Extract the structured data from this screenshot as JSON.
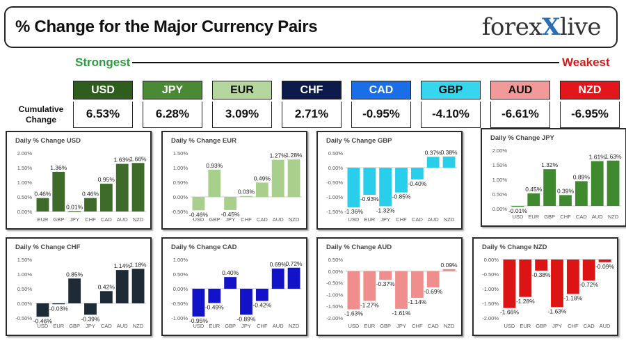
{
  "header": {
    "title": "% Change for the Major Currency Pairs",
    "logo_left": "forex",
    "logo_mark": "X",
    "logo_right": "live"
  },
  "ranking": {
    "strongest_label": "Strongest",
    "weakest_label": "Weakest",
    "cumulative_label": "Cumulative Change",
    "currencies": [
      {
        "code": "USD",
        "value": "6.53%",
        "bg": "#2f5d1e",
        "fg": "#ffffff"
      },
      {
        "code": "JPY",
        "value": "6.28%",
        "bg": "#4b8a34",
        "fg": "#ffffff"
      },
      {
        "code": "EUR",
        "value": "3.09%",
        "bg": "#b5d69c",
        "fg": "#111111"
      },
      {
        "code": "CHF",
        "value": "2.71%",
        "bg": "#0d1b4c",
        "fg": "#ffffff"
      },
      {
        "code": "CAD",
        "value": "-0.95%",
        "bg": "#1a6fe8",
        "fg": "#ffffff"
      },
      {
        "code": "GBP",
        "value": "-4.10%",
        "bg": "#35d6ee",
        "fg": "#111111"
      },
      {
        "code": "AUD",
        "value": "-6.61%",
        "bg": "#f29a9a",
        "fg": "#111111"
      },
      {
        "code": "NZD",
        "value": "-6.95%",
        "bg": "#e3171b",
        "fg": "#ffffff"
      }
    ]
  },
  "chart_data": [
    {
      "type": "bar",
      "title": "Daily % Change USD",
      "categories": [
        "EUR",
        "GBP",
        "JPY",
        "CHF",
        "CAD",
        "AUD",
        "NZD"
      ],
      "values": [
        0.46,
        1.36,
        0.01,
        0.46,
        0.95,
        1.63,
        1.66
      ],
      "labels": [
        "0.46%",
        "1.36%",
        "0.01%",
        "0.46%",
        "0.95%",
        "1.63%",
        "1.66%"
      ],
      "yticks": [
        "0.00%",
        "0.50%",
        "1.00%",
        "1.50%",
        "2.00%"
      ],
      "ylim": [
        0,
        2.0
      ],
      "color": "#3e6b2a",
      "grid": false
    },
    {
      "type": "bar",
      "title": "Daily % Change EUR",
      "categories": [
        "USD",
        "GBP",
        "JPY",
        "CHF",
        "CAD",
        "AUD",
        "NZD"
      ],
      "values": [
        -0.46,
        0.93,
        -0.45,
        0.03,
        0.49,
        1.27,
        1.28
      ],
      "labels": [
        "-0.46%",
        "0.93%",
        "-0.45%",
        "0.03%",
        "0.49%",
        "1.27%",
        "1.28%"
      ],
      "yticks": [
        "-0.50%",
        "0.00%",
        "0.50%",
        "1.00%",
        "1.50%"
      ],
      "ylim": [
        -0.5,
        1.5
      ],
      "color": "#a9cf8d",
      "grid": false
    },
    {
      "type": "bar",
      "title": "Daily % Change GBP",
      "categories": [
        "USD",
        "EUR",
        "JPY",
        "CHF",
        "CAD",
        "AUD",
        "NZD"
      ],
      "values": [
        -1.36,
        -0.93,
        -1.32,
        -0.85,
        -0.4,
        0.37,
        0.38
      ],
      "labels": [
        "-1.36%",
        "-0.93%",
        "-1.32%",
        "-0.85%",
        "-0.40%",
        "0.37%",
        "0.38%"
      ],
      "yticks": [
        "-1.50%",
        "-1.00%",
        "-0.50%",
        "0.00%",
        "0.50%"
      ],
      "ylim": [
        -1.5,
        0.5
      ],
      "color": "#29cfea",
      "grid": false
    },
    {
      "type": "bar",
      "title": "Daily % Change JPY",
      "categories": [
        "USD",
        "EUR",
        "GBP",
        "CHF",
        "CAD",
        "AUD",
        "NZD"
      ],
      "values": [
        -0.01,
        0.45,
        1.32,
        0.39,
        0.89,
        1.61,
        1.63
      ],
      "labels": [
        "-0.01%",
        "0.45%",
        "1.32%",
        "0.39%",
        "0.89%",
        "1.61%",
        "1.63%"
      ],
      "yticks": [
        "0.00%",
        "0.50%",
        "1.00%",
        "1.50%",
        "2.00%"
      ],
      "ylim": [
        -0.1,
        2.0
      ],
      "color": "#3f8a2e",
      "grid": false
    },
    {
      "type": "bar",
      "title": "Daily % Change CHF",
      "categories": [
        "USD",
        "EUR",
        "GBP",
        "JPY",
        "CAD",
        "AUD",
        "NZD"
      ],
      "values": [
        -0.46,
        -0.03,
        0.85,
        -0.39,
        0.42,
        1.14,
        1.18
      ],
      "labels": [
        "-0.46%",
        "-0.03%",
        "0.85%",
        "-0.39%",
        "0.42%",
        "1.14%",
        "1.18%"
      ],
      "yticks": [
        "-0.50%",
        "0.00%",
        "0.50%",
        "1.00%",
        "1.50%"
      ],
      "ylim": [
        -0.5,
        1.5
      ],
      "color": "#1e2a36",
      "grid": false
    },
    {
      "type": "bar",
      "title": "Daily % Change CAD",
      "categories": [
        "USD",
        "EUR",
        "GBP",
        "JPY",
        "CHF",
        "AUD",
        "NZD"
      ],
      "values": [
        -0.95,
        -0.49,
        0.4,
        -0.89,
        -0.42,
        0.69,
        0.72
      ],
      "labels": [
        "-0.95%",
        "-0.49%",
        "0.40%",
        "-0.89%",
        "-0.42%",
        "0.69%",
        "0.72%"
      ],
      "yticks": [
        "-1.00%",
        "-0.50%",
        "0.00%",
        "0.50%",
        "1.00%"
      ],
      "ylim": [
        -1.0,
        1.0
      ],
      "color": "#1212c8",
      "grid": false
    },
    {
      "type": "bar",
      "title": "Daily % Change AUD",
      "categories": [
        "USD",
        "EUR",
        "GBP",
        "JPY",
        "CHF",
        "CAD",
        "NZD"
      ],
      "values": [
        -1.63,
        -1.27,
        -0.37,
        -1.61,
        -1.14,
        -0.69,
        0.09
      ],
      "labels": [
        "-1.63%",
        "-1.27%",
        "-0.37%",
        "-1.61%",
        "-1.14%",
        "-0.69%",
        "0.09%"
      ],
      "yticks": [
        "-2.00%",
        "-1.50%",
        "-1.00%",
        "-0.50%",
        "0.00%",
        "0.50%"
      ],
      "ylim": [
        -2.0,
        0.5
      ],
      "color": "#f08e8e",
      "grid": false
    },
    {
      "type": "bar",
      "title": "Daily % Change NZD",
      "categories": [
        "USD",
        "EUR",
        "GBP",
        "JPY",
        "CHF",
        "CAD",
        "AUD"
      ],
      "values": [
        -1.66,
        -1.28,
        -0.38,
        -1.63,
        -1.18,
        -0.72,
        -0.09
      ],
      "labels": [
        "-1.66%",
        "-1.28%",
        "-0.38%",
        "-1.63%",
        "-1.18%",
        "-0.72%",
        "-0.09%"
      ],
      "yticks": [
        "-2.00%",
        "-1.50%",
        "-1.00%",
        "-0.50%",
        "0.00%"
      ],
      "ylim": [
        -2.0,
        0.0
      ],
      "color": "#dd1414",
      "grid": false
    }
  ]
}
